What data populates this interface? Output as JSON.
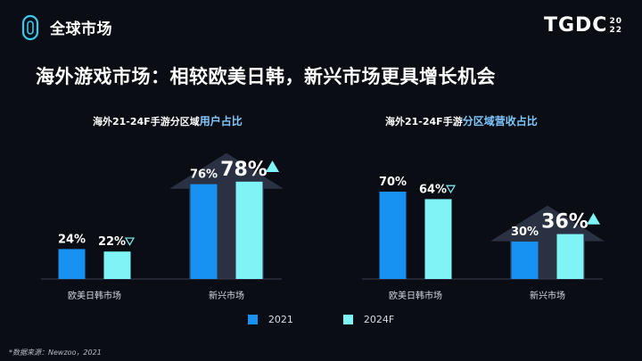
{
  "header": {
    "section_title": "全球市场",
    "brand_name": "TGDC",
    "brand_year_top": "20",
    "brand_year_bottom": "22"
  },
  "headline": "海外游戏市场：相较欧美日韩，新兴市场更具增长机会",
  "colors": {
    "series_2021": "#1791f2",
    "series_2024F": "#7ef4f6",
    "background": "#0b0d14",
    "arrow": "#2a3142"
  },
  "legend": [
    {
      "name": "2021"
    },
    {
      "name": "2024F"
    }
  ],
  "source": "*数据来源：Newzoo，2021",
  "chart_data": [
    {
      "type": "bar",
      "title_prefix": "海外21-24F手游分区域",
      "title_highlight": "用户占比",
      "categories": [
        "欧美日韩市场",
        "新兴市场"
      ],
      "series": [
        {
          "name": "2021",
          "values": [
            24,
            76
          ]
        },
        {
          "name": "2024F",
          "values": [
            22,
            78
          ]
        }
      ],
      "value_labels": [
        [
          "24%",
          "76%"
        ],
        [
          "22%",
          "78%"
        ]
      ],
      "trend": [
        [
          null,
          null
        ],
        [
          "down",
          "up"
        ]
      ],
      "emphasized": [
        [
          false,
          false
        ],
        [
          false,
          true
        ]
      ],
      "ylim": [
        0,
        100
      ]
    },
    {
      "type": "bar",
      "title_prefix": "海外21-24F手游",
      "title_highlight": "分区域营收占比",
      "categories": [
        "欧美日韩市场",
        "新兴市场"
      ],
      "series": [
        {
          "name": "2021",
          "values": [
            70,
            30
          ]
        },
        {
          "name": "2024F",
          "values": [
            64,
            36
          ]
        }
      ],
      "value_labels": [
        [
          "70%",
          "30%"
        ],
        [
          "64%",
          "36%"
        ]
      ],
      "trend": [
        [
          null,
          null
        ],
        [
          "down",
          "up"
        ]
      ],
      "emphasized": [
        [
          false,
          false
        ],
        [
          false,
          true
        ]
      ],
      "ylim": [
        0,
        100
      ]
    }
  ]
}
